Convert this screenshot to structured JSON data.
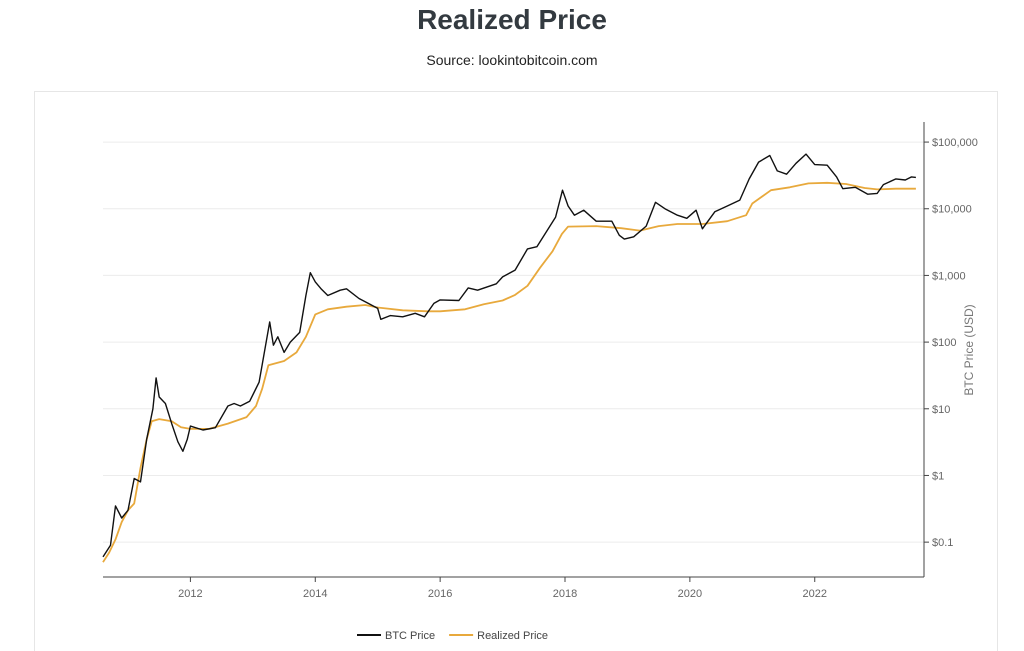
{
  "header": {
    "title": "Realized Price",
    "subtitle": "Source: lookintobitcoin.com"
  },
  "chart_data": {
    "type": "line",
    "title": "Realized Price",
    "subtitle": "Source: lookintobitcoin.com",
    "xlabel": "",
    "ylabel": "BTC Price (USD)",
    "y_scale": "log",
    "ylim": [
      0.03,
      200000
    ],
    "xlim": [
      2010.6,
      2023.75
    ],
    "x_ticks": [
      2012,
      2014,
      2016,
      2018,
      2020,
      2022
    ],
    "x_tick_labels": [
      "2012",
      "2014",
      "2016",
      "2018",
      "2020",
      "2022"
    ],
    "y_ticks": [
      0.1,
      1,
      10,
      100,
      1000,
      10000,
      100000
    ],
    "y_tick_labels": [
      "$0.1",
      "$1",
      "$10",
      "$100",
      "$1,000",
      "$10,000",
      "$100,000"
    ],
    "y_axis_position": "right",
    "grid": "horizontal",
    "legend": {
      "position": "bottom-center"
    },
    "series": [
      {
        "name": "BTC Price",
        "color": "#111111",
        "points": [
          [
            2010.6,
            0.06
          ],
          [
            2010.72,
            0.09
          ],
          [
            2010.8,
            0.35
          ],
          [
            2010.9,
            0.23
          ],
          [
            2011.0,
            0.3
          ],
          [
            2011.1,
            0.9
          ],
          [
            2011.2,
            0.8
          ],
          [
            2011.3,
            3.5
          ],
          [
            2011.4,
            10
          ],
          [
            2011.45,
            29
          ],
          [
            2011.5,
            15
          ],
          [
            2011.6,
            12
          ],
          [
            2011.7,
            6
          ],
          [
            2011.8,
            3.2
          ],
          [
            2011.88,
            2.3
          ],
          [
            2011.95,
            3.5
          ],
          [
            2012.0,
            5.5
          ],
          [
            2012.2,
            4.8
          ],
          [
            2012.4,
            5.2
          ],
          [
            2012.6,
            11
          ],
          [
            2012.7,
            12
          ],
          [
            2012.8,
            11
          ],
          [
            2012.95,
            13
          ],
          [
            2013.1,
            25
          ],
          [
            2013.27,
            200
          ],
          [
            2013.33,
            90
          ],
          [
            2013.4,
            120
          ],
          [
            2013.5,
            70
          ],
          [
            2013.6,
            100
          ],
          [
            2013.75,
            140
          ],
          [
            2013.85,
            500
          ],
          [
            2013.92,
            1100
          ],
          [
            2014.0,
            800
          ],
          [
            2014.1,
            620
          ],
          [
            2014.2,
            500
          ],
          [
            2014.4,
            600
          ],
          [
            2014.5,
            630
          ],
          [
            2014.7,
            450
          ],
          [
            2014.85,
            380
          ],
          [
            2015.0,
            320
          ],
          [
            2015.05,
            220
          ],
          [
            2015.2,
            250
          ],
          [
            2015.4,
            240
          ],
          [
            2015.6,
            270
          ],
          [
            2015.75,
            240
          ],
          [
            2015.9,
            380
          ],
          [
            2016.0,
            430
          ],
          [
            2016.3,
            420
          ],
          [
            2016.45,
            650
          ],
          [
            2016.6,
            600
          ],
          [
            2016.9,
            750
          ],
          [
            2017.0,
            950
          ],
          [
            2017.2,
            1200
          ],
          [
            2017.4,
            2500
          ],
          [
            2017.55,
            2700
          ],
          [
            2017.7,
            4500
          ],
          [
            2017.85,
            7500
          ],
          [
            2017.96,
            19000
          ],
          [
            2018.05,
            11000
          ],
          [
            2018.15,
            8000
          ],
          [
            2018.3,
            9500
          ],
          [
            2018.5,
            6500
          ],
          [
            2018.75,
            6500
          ],
          [
            2018.87,
            4000
          ],
          [
            2018.95,
            3500
          ],
          [
            2019.1,
            3800
          ],
          [
            2019.3,
            5500
          ],
          [
            2019.45,
            12500
          ],
          [
            2019.6,
            10000
          ],
          [
            2019.8,
            8000
          ],
          [
            2019.95,
            7200
          ],
          [
            2020.1,
            9500
          ],
          [
            2020.2,
            5000
          ],
          [
            2020.4,
            9000
          ],
          [
            2020.6,
            11000
          ],
          [
            2020.8,
            13500
          ],
          [
            2020.95,
            28000
          ],
          [
            2021.1,
            50000
          ],
          [
            2021.28,
            63000
          ],
          [
            2021.4,
            37000
          ],
          [
            2021.55,
            33000
          ],
          [
            2021.7,
            48000
          ],
          [
            2021.86,
            66000
          ],
          [
            2022.0,
            46000
          ],
          [
            2022.2,
            45000
          ],
          [
            2022.35,
            30000
          ],
          [
            2022.45,
            20000
          ],
          [
            2022.65,
            21000
          ],
          [
            2022.85,
            16500
          ],
          [
            2023.0,
            17000
          ],
          [
            2023.1,
            23000
          ],
          [
            2023.3,
            28000
          ],
          [
            2023.45,
            27000
          ],
          [
            2023.55,
            30000
          ],
          [
            2023.62,
            29500
          ]
        ]
      },
      {
        "name": "Realized Price",
        "color": "#e8a93c",
        "points": [
          [
            2010.6,
            0.05
          ],
          [
            2010.7,
            0.07
          ],
          [
            2010.8,
            0.11
          ],
          [
            2010.9,
            0.2
          ],
          [
            2011.0,
            0.3
          ],
          [
            2011.1,
            0.38
          ],
          [
            2011.2,
            1.3
          ],
          [
            2011.3,
            3.5
          ],
          [
            2011.38,
            6.5
          ],
          [
            2011.5,
            7
          ],
          [
            2011.7,
            6.5
          ],
          [
            2011.85,
            5.3
          ],
          [
            2012.0,
            5.0
          ],
          [
            2012.3,
            5.0
          ],
          [
            2012.6,
            6.0
          ],
          [
            2012.9,
            7.5
          ],
          [
            2013.05,
            11
          ],
          [
            2013.15,
            20
          ],
          [
            2013.25,
            45
          ],
          [
            2013.5,
            52
          ],
          [
            2013.7,
            70
          ],
          [
            2013.85,
            120
          ],
          [
            2014.0,
            260
          ],
          [
            2014.2,
            310
          ],
          [
            2014.5,
            340
          ],
          [
            2014.8,
            360
          ],
          [
            2015.0,
            330
          ],
          [
            2015.4,
            300
          ],
          [
            2015.8,
            290
          ],
          [
            2016.0,
            290
          ],
          [
            2016.4,
            310
          ],
          [
            2016.7,
            370
          ],
          [
            2017.0,
            420
          ],
          [
            2017.2,
            510
          ],
          [
            2017.4,
            700
          ],
          [
            2017.6,
            1300
          ],
          [
            2017.8,
            2300
          ],
          [
            2017.95,
            4200
          ],
          [
            2018.05,
            5400
          ],
          [
            2018.5,
            5500
          ],
          [
            2018.9,
            5100
          ],
          [
            2019.2,
            4700
          ],
          [
            2019.5,
            5500
          ],
          [
            2019.8,
            5900
          ],
          [
            2020.2,
            5900
          ],
          [
            2020.6,
            6500
          ],
          [
            2020.9,
            8000
          ],
          [
            2021.0,
            12000
          ],
          [
            2021.3,
            19000
          ],
          [
            2021.6,
            21000
          ],
          [
            2021.9,
            24000
          ],
          [
            2022.2,
            24500
          ],
          [
            2022.5,
            23500
          ],
          [
            2022.8,
            20500
          ],
          [
            2023.0,
            19500
          ],
          [
            2023.3,
            20000
          ],
          [
            2023.62,
            20000
          ]
        ]
      }
    ]
  }
}
